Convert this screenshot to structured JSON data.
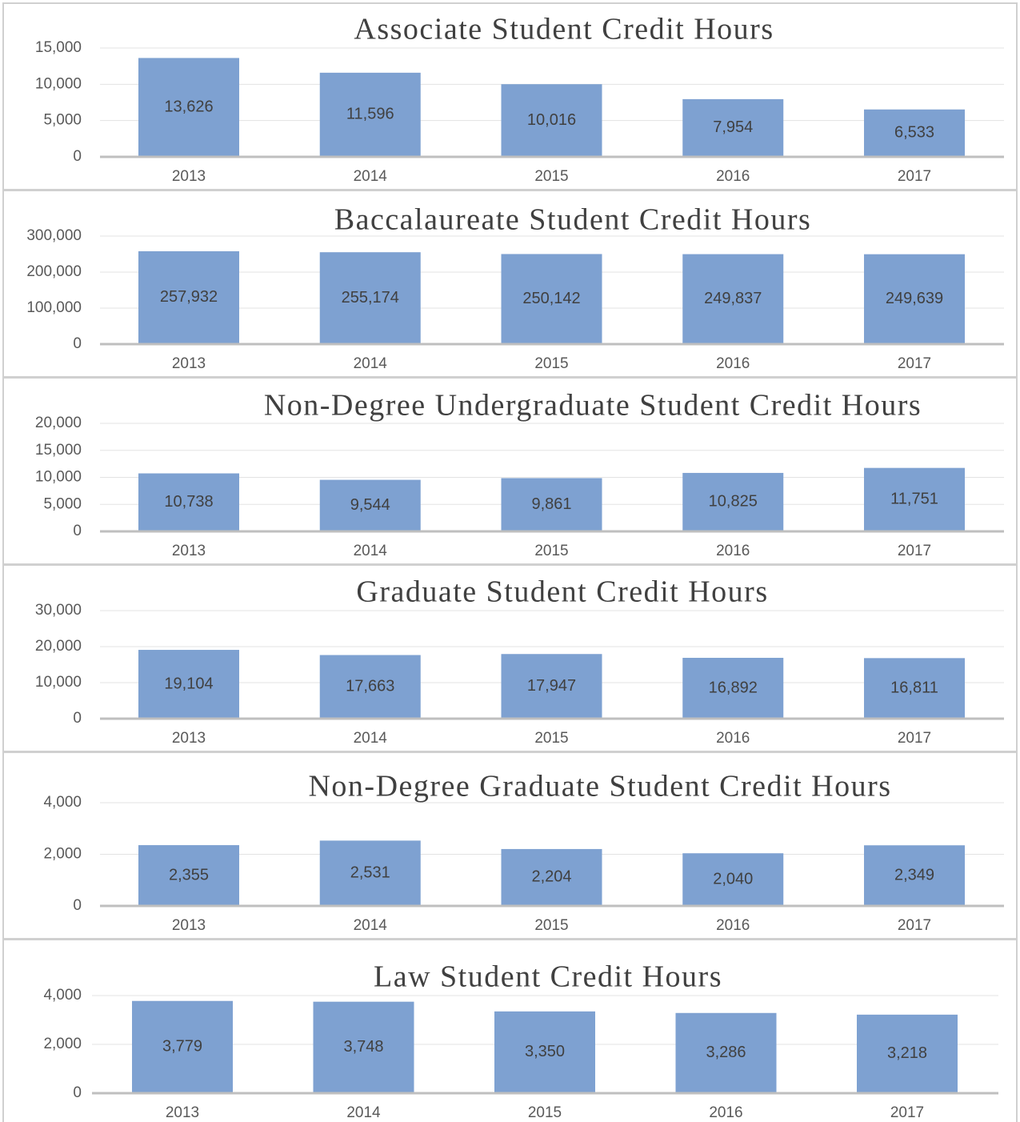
{
  "chart_data": [
    {
      "type": "bar",
      "title": "Associate Student Credit Hours",
      "categories": [
        "2013",
        "2014",
        "2015",
        "2016",
        "2017"
      ],
      "values": [
        13626,
        11596,
        10016,
        7954,
        6533
      ],
      "value_labels": [
        "13,626",
        "11,596",
        "10,016",
        "7,954",
        "6,533"
      ],
      "color": "#7ea1d1",
      "ylim": [
        0,
        15000
      ],
      "yticks": [
        0,
        {
          "value": 5000,
          "label": "5,000"
        },
        {
          "value": 10000,
          "label": "10,000"
        },
        {
          "value": 15000,
          "label": "15,000"
        }
      ],
      "grid": true
    },
    {
      "type": "bar",
      "title": "Baccalaureate Student Credit Hours",
      "categories": [
        "2013",
        "2014",
        "2015",
        "2016",
        "2017"
      ],
      "values": [
        257932,
        255174,
        250142,
        249837,
        249639
      ],
      "value_labels": [
        "257,932",
        "255,174",
        "250,142",
        "249,837",
        "249,639"
      ],
      "color": "#7ea1d1",
      "ylim": [
        0,
        300000
      ],
      "yticks": [
        0,
        {
          "value": 100000,
          "label": "100,000"
        },
        {
          "value": 200000,
          "label": "200,000"
        },
        {
          "value": 300000,
          "label": "300,000"
        }
      ],
      "grid": true
    },
    {
      "type": "bar",
      "title": "Non-Degree Undergraduate Student Credit Hours",
      "categories": [
        "2013",
        "2014",
        "2015",
        "2016",
        "2017"
      ],
      "values": [
        10738,
        9544,
        9861,
        10825,
        11751
      ],
      "value_labels": [
        "10,738",
        "9,544",
        "9,861",
        "10,825",
        "11,751"
      ],
      "color": "#7ea1d1",
      "ylim": [
        0,
        20000
      ],
      "yticks": [
        0,
        {
          "value": 5000,
          "label": "5,000"
        },
        {
          "value": 10000,
          "label": "10,000"
        },
        {
          "value": 15000,
          "label": "15,000"
        },
        {
          "value": 20000,
          "label": "20,000"
        }
      ],
      "grid": true
    },
    {
      "type": "bar",
      "title": "Graduate Student Credit Hours",
      "categories": [
        "2013",
        "2014",
        "2015",
        "2016",
        "2017"
      ],
      "values": [
        19104,
        17663,
        17947,
        16892,
        16811
      ],
      "value_labels": [
        "19,104",
        "17,663",
        "17,947",
        "16,892",
        "16,811"
      ],
      "color": "#7ea1d1",
      "ylim": [
        0,
        30000
      ],
      "yticks": [
        0,
        {
          "value": 10000,
          "label": "10,000"
        },
        {
          "value": 20000,
          "label": "20,000"
        },
        {
          "value": 30000,
          "label": "30,000"
        }
      ],
      "grid": true
    },
    {
      "type": "bar",
      "title": "Non-Degree Graduate Student Credit Hours",
      "categories": [
        "2013",
        "2014",
        "2015",
        "2016",
        "2017"
      ],
      "values": [
        2355,
        2531,
        2204,
        2040,
        2349
      ],
      "value_labels": [
        "2,355",
        "2,531",
        "2,204",
        "2,040",
        "2,349"
      ],
      "color": "#7ea1d1",
      "ylim": [
        0,
        4000
      ],
      "yticks": [
        0,
        {
          "value": 2000,
          "label": "2,000"
        },
        {
          "value": 4000,
          "label": "4,000"
        }
      ],
      "grid": true
    },
    {
      "type": "bar",
      "title": "Law Student Credit Hours",
      "categories": [
        "2013",
        "2014",
        "2015",
        "2016",
        "2017"
      ],
      "values": [
        3779,
        3748,
        3350,
        3286,
        3218
      ],
      "value_labels": [
        "3,779",
        "3,748",
        "3,350",
        "3,286",
        "3,218"
      ],
      "color": "#7ea1d1",
      "ylim": [
        0,
        4000
      ],
      "yticks": [
        0,
        {
          "value": 2000,
          "label": "2,000"
        },
        {
          "value": 4000,
          "label": "4,000"
        }
      ],
      "grid": true
    }
  ]
}
